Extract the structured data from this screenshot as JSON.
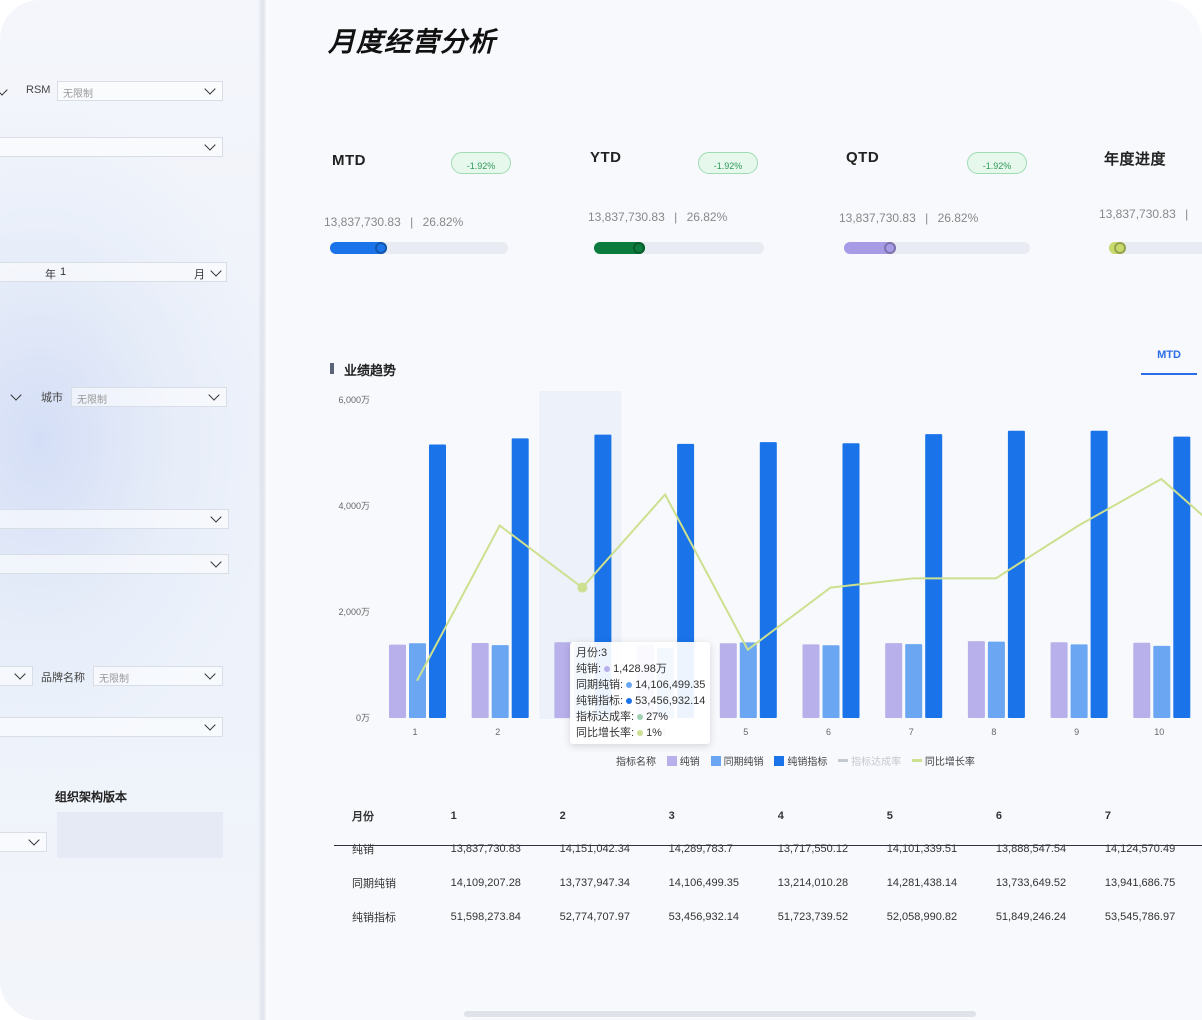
{
  "filters": {
    "rsm_label": "RSM",
    "rsm_value": "无限制",
    "year_label": "年",
    "year_value": "1",
    "month_label": "月",
    "city_label": "城市",
    "city_value": "无限制",
    "brand_label": "品牌名称",
    "brand_value": "无限制",
    "org_version_label": "组织架构版本"
  },
  "page_title": "月度经营分析",
  "kpis": [
    {
      "title": "MTD",
      "badge": "-1.92%",
      "value": "13,837,730.83",
      "separator": "|",
      "rate": "26.82%",
      "progress": 0.32,
      "color": "#1a73e8"
    },
    {
      "title": "YTD",
      "badge": "-1.92%",
      "value": "13,837,730.83",
      "separator": "|",
      "rate": "26.82%",
      "progress": 0.3,
      "color": "#0b7b3e"
    },
    {
      "title": "QTD",
      "badge": "-1.92%",
      "value": "13,837,730.83",
      "separator": "|",
      "rate": "26.82%",
      "progress": 0.28,
      "color": "#a89be6"
    },
    {
      "title": "年度进度",
      "value": "13,837,730.83",
      "separator": "|",
      "progress": 0.18,
      "color": "#c8d96b"
    }
  ],
  "section": {
    "title": "业绩趋势",
    "tab": "MTD"
  },
  "colors": {
    "net_sales": "#b8b0ea",
    "prev_sales": "#6aa6f2",
    "target": "#1a73e8",
    "achieve": "#c4c8d0",
    "growth": "#cde08f"
  },
  "chart_data": {
    "type": "bar",
    "categories": [
      "1",
      "2",
      "3",
      "4",
      "5",
      "6",
      "7",
      "8",
      "9",
      "10"
    ],
    "y_ticks": [
      "0万",
      "2,000万",
      "4,000万",
      "6,000万"
    ],
    "ylim": [
      0,
      6000
    ],
    "series": [
      {
        "name": "纯销",
        "values": [
          1384,
          1415,
          1429,
          1372,
          1410,
          1389,
          1412,
          1450,
          1430,
          1420
        ]
      },
      {
        "name": "同期纯销",
        "values": [
          1411,
          1374,
          1411,
          1321,
          1428,
          1373,
          1394,
          1440,
          1390,
          1360
        ]
      },
      {
        "name": "纯销指标",
        "values": [
          5160,
          5277,
          5346,
          5172,
          5206,
          5185,
          5355,
          5420,
          5420,
          5310
        ]
      },
      {
        "name": "指标达成率",
        "values": [
          27,
          27,
          27,
          27,
          27,
          27,
          27,
          27,
          27,
          27
        ]
      },
      {
        "name": "同比增长率",
        "values": [
          -2,
          3,
          1,
          4,
          -1,
          1,
          1.3,
          1.3,
          3,
          4.5
        ]
      }
    ],
    "legend_title": "指标名称",
    "highlighted_category": "3"
  },
  "tooltip": {
    "title": "月份:3",
    "rows": [
      {
        "label": "纯销:",
        "value": "1,428.98万",
        "color": "#b8b0ea"
      },
      {
        "label": "同期纯销:",
        "value": "14,106,499.35",
        "color": "#6aa6f2"
      },
      {
        "label": "纯销指标:",
        "value": "53,456,932.14",
        "color": "#1a73e8"
      },
      {
        "label": "指标达成率:",
        "value": "27%",
        "color": "#9fcfb0"
      },
      {
        "label": "同比增长率:",
        "value": "1%",
        "color": "#cde08f"
      }
    ]
  },
  "table": {
    "headers": [
      "月份",
      "1",
      "2",
      "3",
      "4",
      "5",
      "6",
      "7"
    ],
    "rows": [
      [
        "纯销",
        "13,837,730.83",
        "14,151,042.34",
        "14,289,783.7",
        "13,717,550.12",
        "14,101,339.51",
        "13,888,547.54",
        "14,124,570.49"
      ],
      [
        "同期纯销",
        "14,109,207.28",
        "13,737,947.34",
        "14,106,499.35",
        "13,214,010.28",
        "14,281,438.14",
        "13,733,649.52",
        "13,941,686.75"
      ],
      [
        "纯销指标",
        "51,598,273.84",
        "52,774,707.97",
        "53,456,932.14",
        "51,723,739.52",
        "52,058,990.82",
        "51,849,246.24",
        "53,545,786.97"
      ]
    ]
  }
}
